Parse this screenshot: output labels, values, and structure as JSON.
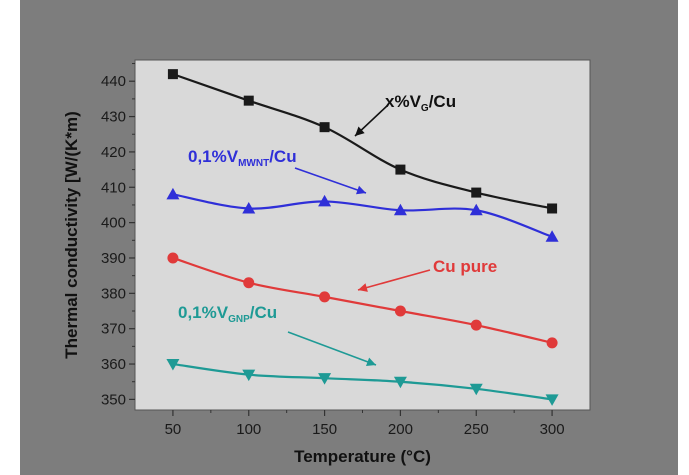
{
  "chart_data": {
    "type": "line",
    "xlabel": "Temperature (°C)",
    "ylabel": "Thermal conductivity [W/(K*m)",
    "xlim": [
      25,
      325
    ],
    "ylim": [
      347,
      446
    ],
    "x": [
      50,
      100,
      150,
      200,
      250,
      300
    ],
    "x_ticks": [
      "50",
      "100",
      "150",
      "200",
      "250",
      "300"
    ],
    "y_ticks": [
      "350",
      "360",
      "370",
      "380",
      "390",
      "400",
      "410",
      "420",
      "430",
      "440"
    ],
    "grid": false,
    "background": "#d9d9d9",
    "series": [
      {
        "label_main": "x%V",
        "label_sub": "G",
        "label_tail": "/Cu",
        "color": "#1a1a1a",
        "label_color": "#111111",
        "marker": "square",
        "values": [
          442,
          434.5,
          427,
          415,
          408.5,
          404
        ]
      },
      {
        "label_main": "0,1%V",
        "label_sub": "MWNT",
        "label_tail": "/Cu",
        "color": "#2f2fd8",
        "label_color": "#2f2fd8",
        "marker": "triangle-up",
        "values": [
          408,
          404,
          406,
          403.5,
          403.5,
          396
        ]
      },
      {
        "label_main": "Cu pure",
        "label_sub": "",
        "label_tail": "",
        "color": "#e03a3a",
        "label_color": "#e03a3a",
        "marker": "circle",
        "values": [
          390,
          383,
          379,
          375,
          371,
          366
        ]
      },
      {
        "label_main": "0,1%V",
        "label_sub": "GNP",
        "label_tail": "/Cu",
        "color": "#1e9a95",
        "label_color": "#1e9a95",
        "marker": "triangle-down",
        "values": [
          360,
          357,
          356,
          355,
          353,
          350
        ]
      }
    ]
  }
}
